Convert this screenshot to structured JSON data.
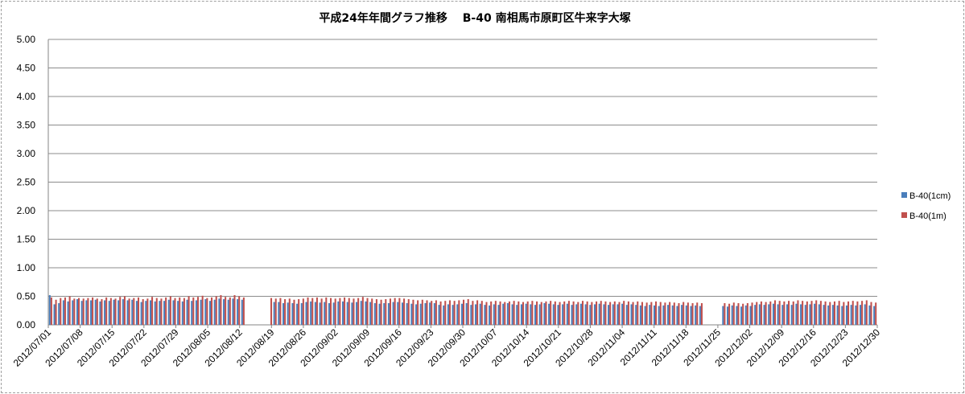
{
  "chart_data": {
    "type": "bar",
    "title": "平成24年年間グラフ推移　 B-40 南相馬市原町区牛来字大塚",
    "xlabel": "",
    "ylabel": "",
    "ylim": [
      0,
      5
    ],
    "yticks": [
      "0.00",
      "0.50",
      "1.00",
      "1.50",
      "2.00",
      "2.50",
      "3.00",
      "3.50",
      "4.00",
      "4.50",
      "5.00"
    ],
    "x_range": [
      "2012/07/01",
      "2012/12/30"
    ],
    "x_tick_labels": [
      "2012/07/01",
      "2012/07/08",
      "2012/07/15",
      "2012/07/22",
      "2012/07/29",
      "2012/08/05",
      "2012/08/12",
      "2012/08/19",
      "2012/08/26",
      "2012/09/02",
      "2012/09/09",
      "2012/09/16",
      "2012/09/23",
      "2012/09/30",
      "2012/10/07",
      "2012/10/14",
      "2012/10/21",
      "2012/10/28",
      "2012/11/04",
      "2012/11/11",
      "2012/11/18",
      "2012/11/25",
      "2012/12/02",
      "2012/12/09",
      "2012/12/16",
      "2012/12/23",
      "2012/12/30"
    ],
    "grid": true,
    "legend_position": "right",
    "series": [
      {
        "name": "B-40(1cm)",
        "color": "#4a7ebb",
        "values": [
          0.52,
          0.36,
          0.38,
          0.43,
          0.41,
          0.43,
          0.45,
          0.42,
          0.43,
          0.43,
          0.44,
          0.41,
          0.43,
          0.42,
          0.44,
          0.43,
          0.45,
          0.43,
          0.44,
          0.42,
          0.4,
          0.42,
          0.43,
          0.41,
          0.42,
          0.42,
          0.44,
          0.43,
          0.42,
          0.41,
          0.44,
          0.42,
          0.43,
          0.44,
          0.45,
          0.42,
          0.44,
          0.46,
          0.45,
          0.44,
          0.46,
          0.45,
          0.44,
          null,
          null,
          null,
          null,
          null,
          null,
          0.4,
          0.4,
          0.38,
          0.39,
          0.38,
          0.37,
          0.38,
          0.4,
          0.41,
          0.4,
          0.39,
          0.4,
          0.38,
          0.39,
          0.41,
          0.41,
          0.4,
          0.39,
          0.4,
          0.42,
          0.41,
          0.4,
          0.38,
          0.37,
          0.38,
          0.38,
          0.4,
          0.4,
          0.39,
          0.38,
          0.37,
          0.36,
          0.37,
          0.38,
          0.39,
          0.38,
          0.35,
          0.34,
          0.36,
          0.35,
          0.36,
          0.37,
          0.38,
          0.35,
          0.36,
          0.37,
          0.35,
          0.34,
          0.36,
          0.35,
          0.37,
          0.38,
          0.36,
          0.35,
          0.36,
          0.37,
          0.36,
          0.35,
          0.36,
          0.38,
          0.37,
          0.36,
          0.35,
          0.36,
          0.37,
          0.35,
          0.36,
          0.37,
          0.36,
          0.35,
          0.36,
          0.37,
          0.36,
          0.35,
          0.36,
          0.36,
          0.37,
          0.35,
          0.36,
          0.35,
          0.34,
          0.33,
          0.35,
          0.34,
          0.33,
          0.34,
          0.35,
          0.34,
          0.33,
          0.35,
          0.34,
          0.33,
          0.34,
          0.33,
          null,
          null,
          null,
          null,
          0.33,
          0.32,
          0.34,
          0.33,
          0.32,
          0.34,
          0.33,
          0.35,
          0.36,
          0.35,
          0.36,
          0.37,
          0.36,
          0.35,
          0.36,
          0.35,
          0.37,
          0.36,
          0.35,
          0.36,
          0.37,
          0.36,
          0.35,
          0.34,
          0.35,
          0.34,
          0.33,
          0.34,
          0.35,
          0.34,
          0.35,
          0.36,
          0.34,
          0.33
        ]
      },
      {
        "name": "B-40(1m)",
        "color": "#c0504d",
        "values": [
          0.48,
          0.44,
          0.47,
          0.48,
          0.5,
          0.46,
          0.47,
          0.46,
          0.47,
          0.48,
          0.46,
          0.45,
          0.48,
          0.47,
          0.46,
          0.49,
          0.5,
          0.46,
          0.47,
          0.48,
          0.45,
          0.46,
          0.49,
          0.47,
          0.46,
          0.48,
          0.5,
          0.47,
          0.48,
          0.47,
          0.5,
          0.48,
          0.49,
          0.51,
          0.47,
          0.48,
          0.5,
          0.52,
          0.49,
          0.48,
          0.52,
          0.5,
          0.48,
          null,
          null,
          null,
          null,
          null,
          0.47,
          0.46,
          0.47,
          0.45,
          0.46,
          0.44,
          0.45,
          0.46,
          0.48,
          0.47,
          0.48,
          0.46,
          0.48,
          0.47,
          0.46,
          0.47,
          0.48,
          0.47,
          0.46,
          0.47,
          0.49,
          0.47,
          0.46,
          0.45,
          0.44,
          0.45,
          0.46,
          0.47,
          0.47,
          0.46,
          0.45,
          0.44,
          0.43,
          0.44,
          0.43,
          0.42,
          0.43,
          0.41,
          0.42,
          0.43,
          0.42,
          0.43,
          0.44,
          0.45,
          0.42,
          0.43,
          0.42,
          0.4,
          0.41,
          0.42,
          0.41,
          0.4,
          0.41,
          0.42,
          0.41,
          0.4,
          0.41,
          0.42,
          0.41,
          0.4,
          0.41,
          0.42,
          0.41,
          0.4,
          0.41,
          0.42,
          0.41,
          0.4,
          0.42,
          0.41,
          0.4,
          0.41,
          0.42,
          0.41,
          0.4,
          0.41,
          0.4,
          0.42,
          0.41,
          0.4,
          0.41,
          0.4,
          0.39,
          0.4,
          0.41,
          0.4,
          0.39,
          0.4,
          0.39,
          0.38,
          0.4,
          0.39,
          0.38,
          0.39,
          0.38,
          null,
          null,
          null,
          null,
          0.38,
          0.37,
          0.39,
          0.38,
          0.37,
          0.38,
          0.39,
          0.4,
          0.41,
          0.4,
          0.41,
          0.43,
          0.42,
          0.41,
          0.42,
          0.41,
          0.43,
          0.42,
          0.41,
          0.42,
          0.43,
          0.42,
          0.41,
          0.4,
          0.41,
          0.42,
          0.4,
          0.41,
          0.42,
          0.41,
          0.42,
          0.43,
          0.4,
          0.39
        ]
      }
    ]
  }
}
